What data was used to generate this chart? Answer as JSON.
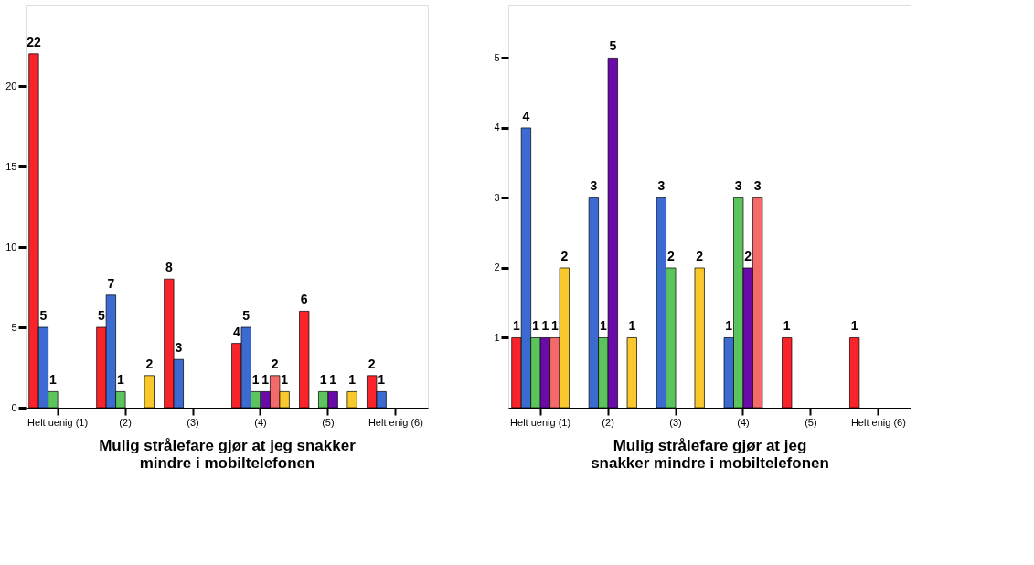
{
  "chart_data": [
    {
      "type": "bar",
      "categories": [
        "Helt uenig (1)",
        "(2)",
        "(3)",
        "(4)",
        "(5)",
        "Helt enig (6)"
      ],
      "xlabel": "Mulig strålefare gjør at jeg snakker\nmindre i mobiltelefonen",
      "ylim": [
        0,
        25
      ],
      "yticks": [
        0,
        5,
        10,
        15,
        20
      ],
      "grid": false,
      "legend": false,
      "data_labels": true,
      "series": [
        {
          "color": "#f8242a",
          "values": [
            22,
            5,
            8,
            4,
            6,
            2
          ]
        },
        {
          "color": "#3b6bd0",
          "values": [
            5,
            7,
            3,
            5,
            null,
            1
          ]
        },
        {
          "color": "#5cc45c",
          "values": [
            1,
            1,
            null,
            1,
            1,
            null
          ]
        },
        {
          "color": "#6a0aa8",
          "values": [
            null,
            null,
            null,
            1,
            1,
            null
          ]
        },
        {
          "color": "#f46a6a",
          "values": [
            null,
            null,
            null,
            2,
            null,
            null
          ]
        },
        {
          "color": "#f8c82c",
          "values": [
            null,
            2,
            null,
            1,
            1,
            null
          ]
        }
      ]
    },
    {
      "type": "bar",
      "categories": [
        "Helt uenig (1)",
        "(2)",
        "(3)",
        "(4)",
        "(5)",
        "Helt enig (6)"
      ],
      "xlabel": "Mulig strålefare gjør at jeg\nsnakker mindre i mobiltelefonen",
      "ylim": [
        0,
        5.75
      ],
      "yticks": [
        1,
        2,
        3,
        4,
        5
      ],
      "grid": false,
      "legend": false,
      "data_labels": true,
      "series": [
        {
          "color": "#f8242a",
          "values": [
            1,
            null,
            null,
            null,
            1,
            1
          ]
        },
        {
          "color": "#3b6bd0",
          "values": [
            4,
            3,
            3,
            1,
            null,
            null
          ]
        },
        {
          "color": "#5cc45c",
          "values": [
            1,
            1,
            2,
            3,
            null,
            null
          ]
        },
        {
          "color": "#6a0aa8",
          "values": [
            1,
            5,
            null,
            2,
            null,
            null
          ]
        },
        {
          "color": "#f46a6a",
          "values": [
            1,
            null,
            null,
            3,
            null,
            null
          ]
        },
        {
          "color": "#f8c82c",
          "values": [
            2,
            1,
            2,
            null,
            null,
            null
          ]
        }
      ]
    }
  ]
}
